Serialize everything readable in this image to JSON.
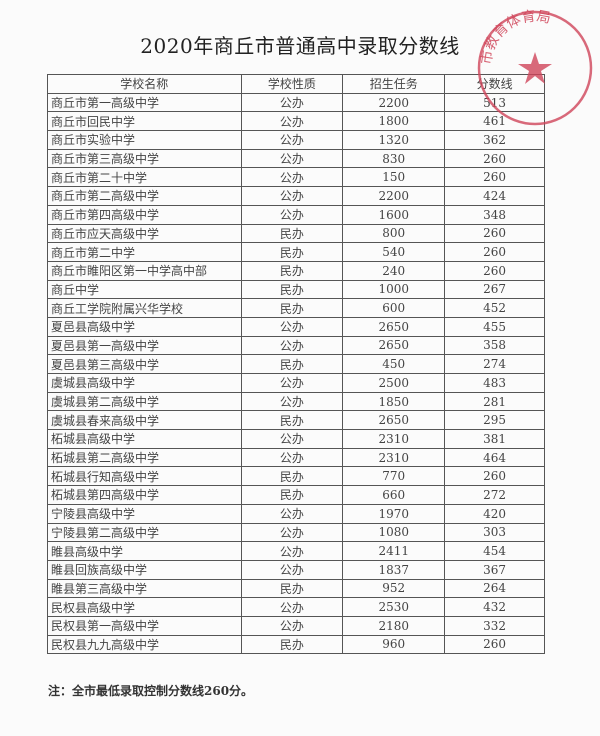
{
  "title": "2020年商丘市普通高中录取分数线",
  "headers": [
    "学校名称",
    "学校性质",
    "招生任务",
    "分数线"
  ],
  "rows": [
    [
      "商丘市第一高级中学",
      "公办",
      "2200",
      "513"
    ],
    [
      "商丘市回民中学",
      "公办",
      "1800",
      "461"
    ],
    [
      "商丘市实验中学",
      "公办",
      "1320",
      "362"
    ],
    [
      "商丘市第三高级中学",
      "公办",
      "830",
      "260"
    ],
    [
      "商丘市第二十中学",
      "公办",
      "150",
      "260"
    ],
    [
      "商丘市第二高级中学",
      "公办",
      "2200",
      "424"
    ],
    [
      "商丘市第四高级中学",
      "公办",
      "1600",
      "348"
    ],
    [
      "商丘市应天高级中学",
      "民办",
      "800",
      "260"
    ],
    [
      "商丘市第二中学",
      "民办",
      "540",
      "260"
    ],
    [
      "商丘市睢阳区第一中学高中部",
      "民办",
      "240",
      "260"
    ],
    [
      "商丘中学",
      "民办",
      "1000",
      "267"
    ],
    [
      "商丘工学院附属兴华学校",
      "民办",
      "600",
      "452"
    ],
    [
      "夏邑县高级中学",
      "公办",
      "2650",
      "455"
    ],
    [
      "夏邑县第一高级中学",
      "公办",
      "2650",
      "358"
    ],
    [
      "夏邑县第三高级中学",
      "民办",
      "450",
      "274"
    ],
    [
      "虞城县高级中学",
      "公办",
      "2500",
      "483"
    ],
    [
      "虞城县第二高级中学",
      "公办",
      "1850",
      "281"
    ],
    [
      "虞城县春来高级中学",
      "民办",
      "2650",
      "295"
    ],
    [
      "柘城县高级中学",
      "公办",
      "2310",
      "381"
    ],
    [
      "柘城县第二高级中学",
      "公办",
      "2310",
      "464"
    ],
    [
      "柘城县行知高级中学",
      "民办",
      "770",
      "260"
    ],
    [
      "柘城县第四高级中学",
      "民办",
      "660",
      "272"
    ],
    [
      "宁陵县高级中学",
      "公办",
      "1970",
      "420"
    ],
    [
      "宁陵县第二高级中学",
      "公办",
      "1080",
      "303"
    ],
    [
      "睢县高级中学",
      "公办",
      "2411",
      "454"
    ],
    [
      "睢县回族高级中学",
      "公办",
      "1837",
      "367"
    ],
    [
      "睢县第三高级中学",
      "民办",
      "952",
      "264"
    ],
    [
      "民权县高级中学",
      "公办",
      "2530",
      "432"
    ],
    [
      "民权县第一高级中学",
      "公办",
      "2180",
      "332"
    ],
    [
      "民权县九九高级中学",
      "民办",
      "960",
      "260"
    ]
  ],
  "note": "注：全市最低录取控制分数线260分。",
  "stamp": {
    "text": "市教育体育局",
    "color": "#d0455a"
  }
}
